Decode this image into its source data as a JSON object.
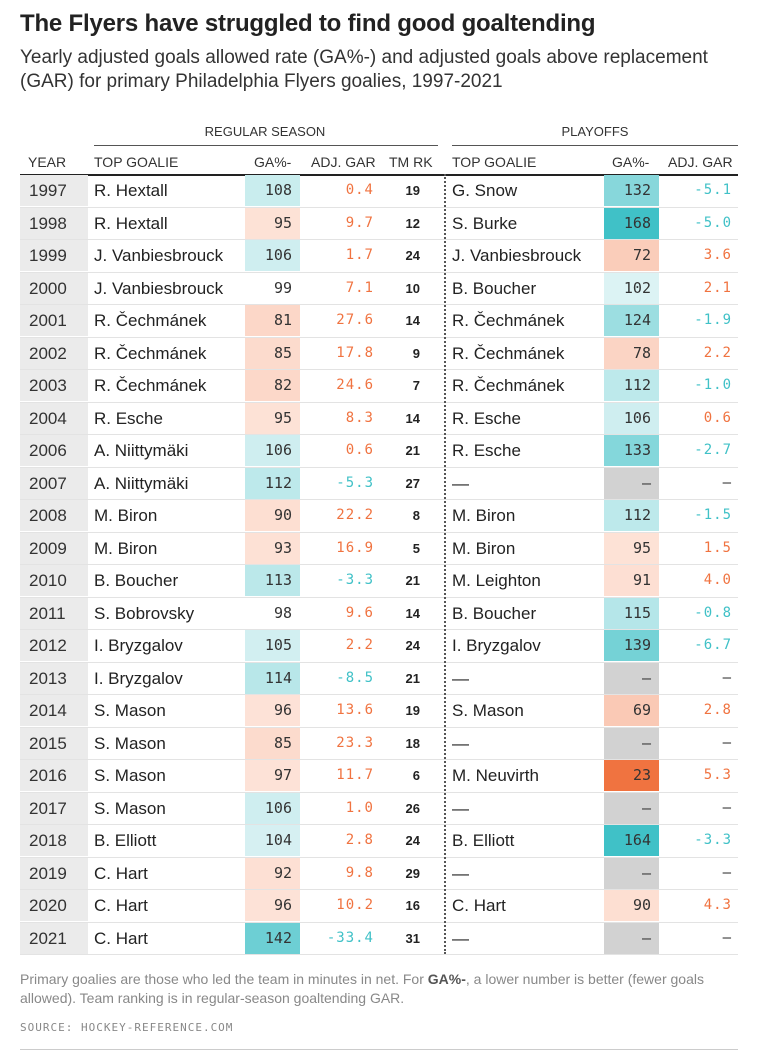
{
  "title": "The Flyers have struggled to find good goaltending",
  "subtitle": "Yearly adjusted goals allowed rate (GA%-) and adjusted goals above replacement (GAR) for primary Philadelphia Flyers goalies, 1997-2021",
  "groups": {
    "regular": "REGULAR SEASON",
    "playoffs": "PLAYOFFS"
  },
  "headers": {
    "year": "YEAR",
    "rs_goalie": "TOP GOALIE",
    "rs_ga": "GA%-",
    "rs_gar": "ADJ. GAR",
    "rs_rank": "TM RK",
    "po_goalie": "TOP GOALIE",
    "po_ga": "GA%-",
    "po_gar": "ADJ. GAR"
  },
  "colors": {
    "good_strong": "#40c1c7",
    "good_light": "#e4f5f6",
    "bad_strong": "#f07340",
    "bad_light": "#fde3d8",
    "missing": "#d2d2d2",
    "gar_positive": "#f07340",
    "gar_negative": "#40c1c7"
  },
  "chart_data": {
    "type": "table",
    "columns": [
      "YEAR",
      "TOP GOALIE",
      "GA%-",
      "ADJ. GAR",
      "TM RK",
      "TOP GOALIE",
      "GA%-",
      "ADJ. GAR"
    ],
    "rows": [
      {
        "year": "1997",
        "rs_goalie": "R. Hextall",
        "rs_ga": 108,
        "rs_gar": "0.4",
        "rs_rank": 19,
        "po_goalie": "G. Snow",
        "po_ga": 132,
        "po_gar": "-5.1"
      },
      {
        "year": "1998",
        "rs_goalie": "R. Hextall",
        "rs_ga": 95,
        "rs_gar": "9.7",
        "rs_rank": 12,
        "po_goalie": "S. Burke",
        "po_ga": 168,
        "po_gar": "-5.0"
      },
      {
        "year": "1999",
        "rs_goalie": "J. Vanbiesbrouck",
        "rs_ga": 106,
        "rs_gar": "1.7",
        "rs_rank": 24,
        "po_goalie": "J. Vanbiesbrouck",
        "po_ga": 72,
        "po_gar": "3.6"
      },
      {
        "year": "2000",
        "rs_goalie": "J. Vanbiesbrouck",
        "rs_ga": 99,
        "rs_gar": "7.1",
        "rs_rank": 10,
        "po_goalie": "B. Boucher",
        "po_ga": 102,
        "po_gar": "2.1"
      },
      {
        "year": "2001",
        "rs_goalie": "R. Čechmánek",
        "rs_ga": 81,
        "rs_gar": "27.6",
        "rs_rank": 14,
        "po_goalie": "R. Čechmánek",
        "po_ga": 124,
        "po_gar": "-1.9"
      },
      {
        "year": "2002",
        "rs_goalie": "R. Čechmánek",
        "rs_ga": 85,
        "rs_gar": "17.8",
        "rs_rank": 9,
        "po_goalie": "R. Čechmánek",
        "po_ga": 78,
        "po_gar": "2.2"
      },
      {
        "year": "2003",
        "rs_goalie": "R. Čechmánek",
        "rs_ga": 82,
        "rs_gar": "24.6",
        "rs_rank": 7,
        "po_goalie": "R. Čechmánek",
        "po_ga": 112,
        "po_gar": "-1.0"
      },
      {
        "year": "2004",
        "rs_goalie": "R. Esche",
        "rs_ga": 95,
        "rs_gar": "8.3",
        "rs_rank": 14,
        "po_goalie": "R. Esche",
        "po_ga": 106,
        "po_gar": "0.6"
      },
      {
        "year": "2006",
        "rs_goalie": "A. Niittymäki",
        "rs_ga": 106,
        "rs_gar": "0.6",
        "rs_rank": 21,
        "po_goalie": "R. Esche",
        "po_ga": 133,
        "po_gar": "-2.7"
      },
      {
        "year": "2007",
        "rs_goalie": "A. Niittymäki",
        "rs_ga": 112,
        "rs_gar": "-5.3",
        "rs_rank": 27,
        "po_goalie": "—",
        "po_ga": "—",
        "po_gar": "—"
      },
      {
        "year": "2008",
        "rs_goalie": "M. Biron",
        "rs_ga": 90,
        "rs_gar": "22.2",
        "rs_rank": 8,
        "po_goalie": "M. Biron",
        "po_ga": 112,
        "po_gar": "-1.5"
      },
      {
        "year": "2009",
        "rs_goalie": "M. Biron",
        "rs_ga": 93,
        "rs_gar": "16.9",
        "rs_rank": 5,
        "po_goalie": "M. Biron",
        "po_ga": 95,
        "po_gar": "1.5"
      },
      {
        "year": "2010",
        "rs_goalie": "B. Boucher",
        "rs_ga": 113,
        "rs_gar": "-3.3",
        "rs_rank": 21,
        "po_goalie": "M. Leighton",
        "po_ga": 91,
        "po_gar": "4.0"
      },
      {
        "year": "2011",
        "rs_goalie": "S. Bobrovsky",
        "rs_ga": 98,
        "rs_gar": "9.6",
        "rs_rank": 14,
        "po_goalie": "B. Boucher",
        "po_ga": 115,
        "po_gar": "-0.8"
      },
      {
        "year": "2012",
        "rs_goalie": "I. Bryzgalov",
        "rs_ga": 105,
        "rs_gar": "2.2",
        "rs_rank": 24,
        "po_goalie": "I. Bryzgalov",
        "po_ga": 139,
        "po_gar": "-6.7"
      },
      {
        "year": "2013",
        "rs_goalie": "I. Bryzgalov",
        "rs_ga": 114,
        "rs_gar": "-8.5",
        "rs_rank": 21,
        "po_goalie": "—",
        "po_ga": "—",
        "po_gar": "—"
      },
      {
        "year": "2014",
        "rs_goalie": "S. Mason",
        "rs_ga": 96,
        "rs_gar": "13.6",
        "rs_rank": 19,
        "po_goalie": "S. Mason",
        "po_ga": 69,
        "po_gar": "2.8"
      },
      {
        "year": "2015",
        "rs_goalie": "S. Mason",
        "rs_ga": 85,
        "rs_gar": "23.3",
        "rs_rank": 18,
        "po_goalie": "—",
        "po_ga": "—",
        "po_gar": "—"
      },
      {
        "year": "2016",
        "rs_goalie": "S. Mason",
        "rs_ga": 97,
        "rs_gar": "11.7",
        "rs_rank": 6,
        "po_goalie": "M. Neuvirth",
        "po_ga": 23,
        "po_gar": "5.3"
      },
      {
        "year": "2017",
        "rs_goalie": "S. Mason",
        "rs_ga": 106,
        "rs_gar": "1.0",
        "rs_rank": 26,
        "po_goalie": "—",
        "po_ga": "—",
        "po_gar": "—"
      },
      {
        "year": "2018",
        "rs_goalie": "B. Elliott",
        "rs_ga": 104,
        "rs_gar": "2.8",
        "rs_rank": 24,
        "po_goalie": "B. Elliott",
        "po_ga": 164,
        "po_gar": "-3.3"
      },
      {
        "year": "2019",
        "rs_goalie": "C. Hart",
        "rs_ga": 92,
        "rs_gar": "9.8",
        "rs_rank": 29,
        "po_goalie": "—",
        "po_ga": "—",
        "po_gar": "—"
      },
      {
        "year": "2020",
        "rs_goalie": "C. Hart",
        "rs_ga": 96,
        "rs_gar": "10.2",
        "rs_rank": 16,
        "po_goalie": "C. Hart",
        "po_ga": 90,
        "po_gar": "4.3"
      },
      {
        "year": "2021",
        "rs_goalie": "C. Hart",
        "rs_ga": 142,
        "rs_gar": "-33.4",
        "rs_rank": 31,
        "po_goalie": "—",
        "po_ga": "—",
        "po_gar": "—"
      }
    ]
  },
  "footnote": {
    "part1": "Primary goalies are those who led the team in minutes in net. For ",
    "bold": "GA%-",
    "part2": ", a lower number is better (fewer goals allowed). Team ranking is in regular-season goaltending GAR."
  },
  "source": "SOURCE: HOCKEY-REFERENCE.COM"
}
